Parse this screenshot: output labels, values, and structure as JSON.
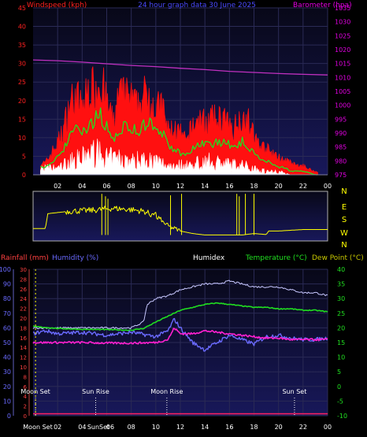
{
  "header": {
    "left_label": "Windspeed (kph)",
    "center_label": "24 hour graph data  30 June 2025",
    "right_label": "Barometer (hpa)"
  },
  "footer_labels": {
    "rain": "Rainfall (mm)",
    "humidity": "Humidity (%)",
    "humidex": "Humidex",
    "temp": "Temperature (°C)",
    "dew": "Dew Point (°C)"
  },
  "direction_labels": [
    "N",
    "E",
    "S",
    "W",
    "N",
    "S"
  ],
  "events": [
    {
      "label": "Moon Set",
      "pos": 0.2
    },
    {
      "label": "Sun Rise",
      "pos": 5.1
    },
    {
      "label": "Moon Rise",
      "pos": 10.9
    },
    {
      "label": "Sun Set",
      "pos": 21.3
    }
  ],
  "bottom_axis_moon": "Moon Set",
  "bottom_axis_sun": "SunSet",
  "colors": {
    "wind_axis": "#ff2020",
    "barometer_axis": "#e000e0",
    "gust": "#ff1010",
    "avg_wind": "#20e020",
    "wind_white": "#ffffff",
    "barometer": "#c030c0",
    "direction": "#ffff00",
    "rain_axis": "#ff4040",
    "humidity_axis": "#6a6aff",
    "temp_axis": "#20e020",
    "dew_axis": "#c8c800",
    "humidex_line": "#c8c8ff",
    "temp_line": "#20dd20",
    "humidity_line": "#6a6aff",
    "dew_line": "#ff20d0",
    "rain_line": "#ff2060"
  },
  "chart_data": [
    {
      "type": "line",
      "title": "24 hour graph data  30 June 2025",
      "x_ticks": [
        "02",
        "04",
        "06",
        "08",
        "10",
        "12",
        "14",
        "16",
        "18",
        "20",
        "22",
        "00"
      ],
      "y_left": {
        "label": "Windspeed (kph)",
        "min": 0,
        "max": 45,
        "ticks": [
          0,
          5,
          10,
          15,
          20,
          25,
          30,
          35,
          40,
          45
        ]
      },
      "y_right": {
        "label": "Barometer (hpa)",
        "min": 975,
        "max": 1035,
        "ticks": [
          975,
          980,
          985,
          990,
          995,
          1000,
          1005,
          1010,
          1015,
          1020,
          1025,
          1030,
          1035
        ]
      },
      "series": [
        {
          "name": "Windspeed (kph)",
          "points": [
            [
              1,
              4
            ],
            [
              2,
              11
            ],
            [
              2.5,
              16
            ],
            [
              3,
              25
            ],
            [
              3.5,
              27
            ],
            [
              4,
              23
            ],
            [
              4.5,
              29
            ],
            [
              5,
              30
            ],
            [
              5.5,
              33
            ],
            [
              6,
              25
            ],
            [
              6.5,
              18
            ],
            [
              7,
              27
            ],
            [
              7.5,
              27
            ],
            [
              8,
              26
            ],
            [
              8.5,
              23
            ],
            [
              9,
              27
            ],
            [
              9.5,
              28
            ],
            [
              10,
              22
            ],
            [
              10.5,
              24
            ],
            [
              11,
              15
            ],
            [
              11.5,
              16
            ],
            [
              12,
              14
            ],
            [
              12.5,
              11
            ],
            [
              13,
              17
            ],
            [
              13.5,
              19
            ],
            [
              14,
              18
            ],
            [
              14.5,
              19
            ],
            [
              15,
              19
            ],
            [
              15.5,
              20
            ],
            [
              16,
              16
            ],
            [
              16.5,
              17
            ],
            [
              17,
              20
            ],
            [
              17.5,
              19
            ],
            [
              18,
              13
            ],
            [
              18.5,
              10
            ],
            [
              19,
              9
            ],
            [
              19.5,
              7
            ],
            [
              20,
              6
            ],
            [
              20.5,
              5
            ],
            [
              21,
              4
            ],
            [
              21.5,
              3
            ],
            [
              22,
              3
            ],
            [
              22.5,
              2
            ],
            [
              23,
              1
            ]
          ]
        },
        {
          "name": "Average",
          "points": [
            [
              1,
              2
            ],
            [
              2,
              5
            ],
            [
              2.5,
              7
            ],
            [
              3,
              10
            ],
            [
              3.5,
              12
            ],
            [
              4,
              11
            ],
            [
              4.5,
              13
            ],
            [
              5,
              15
            ],
            [
              5.5,
              16
            ],
            [
              6,
              13
            ],
            [
              6.5,
              9
            ],
            [
              7,
              12
            ],
            [
              7.5,
              14
            ],
            [
              8,
              13
            ],
            [
              8.5,
              12
            ],
            [
              9,
              13
            ],
            [
              9.5,
              14
            ],
            [
              10,
              11
            ],
            [
              10.5,
              12
            ],
            [
              11,
              8
            ],
            [
              11.5,
              7
            ],
            [
              12,
              6
            ],
            [
              12.5,
              5
            ],
            [
              13,
              7
            ],
            [
              13.5,
              8
            ],
            [
              14,
              9
            ],
            [
              14.5,
              8
            ],
            [
              15,
              9
            ],
            [
              15.5,
              9
            ],
            [
              16,
              8
            ],
            [
              16.5,
              7
            ],
            [
              17,
              9
            ],
            [
              17.5,
              8
            ],
            [
              18,
              6
            ],
            [
              18.5,
              4
            ],
            [
              19,
              4
            ],
            [
              19.5,
              3
            ],
            [
              20,
              2
            ],
            [
              20.5,
              2
            ],
            [
              21,
              1
            ],
            [
              22,
              1
            ],
            [
              23,
              0
            ]
          ]
        },
        {
          "name": "Lull",
          "points": [
            [
              2,
              2
            ],
            [
              3,
              4
            ],
            [
              4,
              5
            ],
            [
              5,
              7
            ],
            [
              6,
              5
            ],
            [
              7,
              5
            ],
            [
              8,
              4
            ],
            [
              9,
              5
            ],
            [
              10,
              4
            ],
            [
              11,
              3
            ],
            [
              12,
              3
            ],
            [
              13,
              3
            ],
            [
              14,
              4
            ],
            [
              15,
              4
            ],
            [
              16,
              3
            ],
            [
              17,
              3
            ],
            [
              18,
              2
            ],
            [
              19,
              1
            ],
            [
              20,
              1
            ],
            [
              21,
              0
            ]
          ]
        },
        {
          "name": "Barometer (hpa)",
          "points": [
            [
              0,
              1016.3
            ],
            [
              2,
              1016
            ],
            [
              4,
              1015.5
            ],
            [
              6,
              1014.9
            ],
            [
              8,
              1014.3
            ],
            [
              10,
              1013.9
            ],
            [
              12,
              1013.3
            ],
            [
              14,
              1012.8
            ],
            [
              16,
              1012.2
            ],
            [
              18,
              1011.8
            ],
            [
              20,
              1011.4
            ],
            [
              22,
              1011.1
            ],
            [
              24,
              1010.9
            ]
          ]
        }
      ]
    },
    {
      "type": "line",
      "axis_labels": [
        "N",
        "E",
        "S",
        "W",
        "N",
        "S"
      ],
      "series": [
        {
          "name": "Wind direction",
          "points": [
            [
              0,
              0.25
            ],
            [
              1.0,
              0.25
            ],
            [
              1.2,
              0.55
            ],
            [
              3,
              0.6
            ],
            [
              5,
              0.62
            ],
            [
              6.5,
              0.66
            ],
            [
              8,
              0.63
            ],
            [
              9,
              0.6
            ],
            [
              10,
              0.5
            ],
            [
              11,
              0.3
            ],
            [
              12,
              0.2
            ],
            [
              13,
              0.15
            ],
            [
              14,
              0.12
            ],
            [
              16,
              0.12
            ],
            [
              17,
              0.12
            ],
            [
              18,
              0.15
            ],
            [
              19,
              0.13
            ],
            [
              19.2,
              0.2
            ],
            [
              20,
              0.2
            ],
            [
              22,
              0.23
            ],
            [
              24,
              0.23
            ]
          ]
        }
      ]
    },
    {
      "type": "line",
      "x_ticks": [
        "02",
        "04",
        "06",
        "08",
        "10",
        "12",
        "14",
        "16",
        "18",
        "20",
        "22",
        "00"
      ],
      "y_humidity": {
        "label": "Humidity (%)",
        "min": 0,
        "max": 100,
        "ticks": [
          0,
          10,
          20,
          30,
          40,
          50,
          60,
          70,
          80,
          90,
          100
        ]
      },
      "y_rain": {
        "label": "Rainfall (mm)",
        "min": 0,
        "max": 30,
        "ticks": [
          0,
          2,
          4,
          6,
          8,
          10,
          12,
          14,
          16,
          18,
          20,
          22,
          24,
          26,
          28,
          30
        ]
      },
      "y_temp": {
        "label": "Temperature (°C)",
        "min": -10,
        "max": 40,
        "ticks": [
          -10,
          -5,
          0,
          5,
          10,
          15,
          20,
          25,
          30,
          35,
          40
        ]
      },
      "series": [
        {
          "name": "Humidex",
          "points": [
            [
              0,
              20
            ],
            [
              4,
              20
            ],
            [
              8,
              20
            ],
            [
              9,
              22
            ],
            [
              9.3,
              28
            ],
            [
              10,
              30
            ],
            [
              11,
              31
            ],
            [
              12,
              33
            ],
            [
              13,
              34
            ],
            [
              14,
              35
            ],
            [
              15,
              35
            ],
            [
              16,
              36
            ],
            [
              17,
              35
            ],
            [
              18,
              34
            ],
            [
              19,
              34
            ],
            [
              20,
              34
            ],
            [
              21,
              33
            ],
            [
              22,
              32
            ],
            [
              23,
              32
            ],
            [
              24,
              31
            ]
          ]
        },
        {
          "name": "Temperature (°C)",
          "points": [
            [
              0,
              20.5
            ],
            [
              2,
              19.8
            ],
            [
              4,
              19.5
            ],
            [
              6,
              19.4
            ],
            [
              8,
              19.2
            ],
            [
              9,
              19.8
            ],
            [
              10,
              22
            ],
            [
              11,
              24
            ],
            [
              12,
              26
            ],
            [
              13,
              27
            ],
            [
              14,
              28
            ],
            [
              15,
              28.5
            ],
            [
              16,
              28
            ],
            [
              17,
              27.5
            ],
            [
              18,
              27
            ],
            [
              19,
              27
            ],
            [
              20,
              26.5
            ],
            [
              21,
              26.5
            ],
            [
              22,
              26
            ],
            [
              23,
              26
            ],
            [
              24,
              25.5
            ]
          ]
        },
        {
          "name": "Humidity (%)",
          "points": [
            [
              0,
              56
            ],
            [
              1,
              58
            ],
            [
              2,
              56
            ],
            [
              4,
              57
            ],
            [
              6,
              55
            ],
            [
              8,
              57
            ],
            [
              10,
              54
            ],
            [
              11,
              58
            ],
            [
              11.5,
              66
            ],
            [
              12,
              60
            ],
            [
              13,
              50
            ],
            [
              14,
              45
            ],
            [
              15,
              50
            ],
            [
              16,
              55
            ],
            [
              17,
              52
            ],
            [
              18,
              49
            ],
            [
              19,
              54
            ],
            [
              20,
              55
            ],
            [
              21,
              53
            ],
            [
              22,
              52
            ],
            [
              23,
              52
            ],
            [
              24,
              53
            ]
          ]
        },
        {
          "name": "Dew Point (°C)",
          "points": [
            [
              0,
              15
            ],
            [
              2,
              15
            ],
            [
              4,
              15
            ],
            [
              6,
              14.8
            ],
            [
              8,
              14.8
            ],
            [
              10,
              15
            ],
            [
              11,
              16
            ],
            [
              11.5,
              20
            ],
            [
              12,
              18
            ],
            [
              13,
              18
            ],
            [
              14,
              19
            ],
            [
              15,
              18.5
            ],
            [
              16,
              18
            ],
            [
              17,
              17.5
            ],
            [
              18,
              17
            ],
            [
              19,
              16.5
            ],
            [
              20,
              16.5
            ],
            [
              21,
              16
            ],
            [
              22,
              16
            ],
            [
              23,
              16
            ],
            [
              24,
              16
            ]
          ]
        },
        {
          "name": "Rainfall (mm)",
          "points": [
            [
              0,
              0.4
            ],
            [
              24,
              0.4
            ]
          ]
        }
      ]
    }
  ]
}
